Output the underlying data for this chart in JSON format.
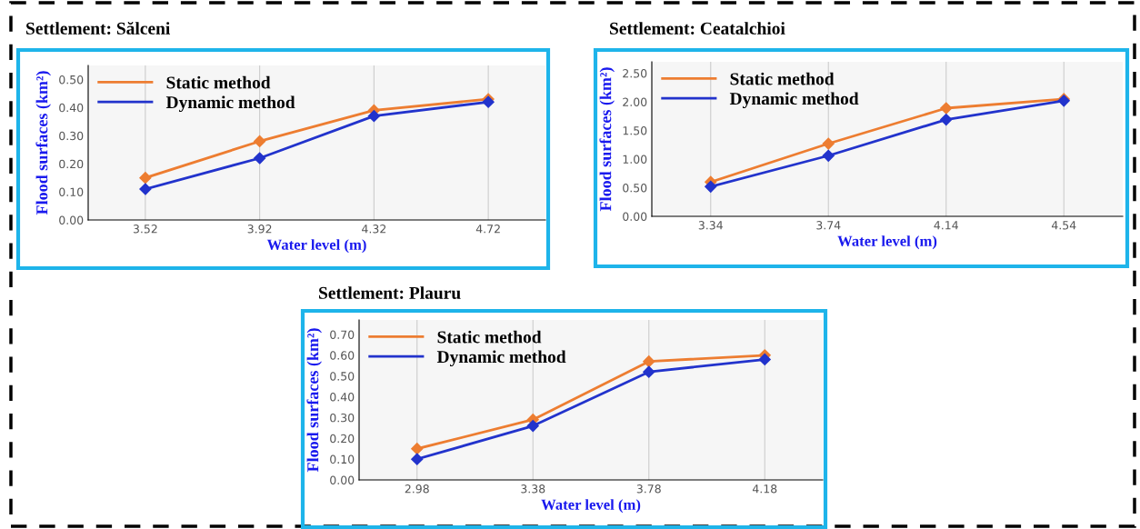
{
  "chart_data": [
    {
      "type": "line",
      "title": "Settlement: Sălceni",
      "xlabel": "Water level (m)",
      "ylabel": "Flood surfaces (km²)",
      "categories": [
        "3.52",
        "3.92",
        "4.32",
        "4.72"
      ],
      "ylim": [
        0,
        0.55
      ],
      "yticks": [
        {
          "value": 0,
          "label": "0.00"
        },
        {
          "value": 0.1,
          "label": "0.10"
        },
        {
          "value": 0.2,
          "label": "0.20"
        },
        {
          "value": 0.3,
          "label": "0.30"
        },
        {
          "value": 0.4,
          "label": "0.40"
        },
        {
          "value": 0.5,
          "label": "0.50"
        }
      ],
      "grid": "x",
      "legend": "top left",
      "marker": "diamond",
      "line_style": "solid",
      "series": [
        {
          "name": "Static method",
          "color": "#ed7d31",
          "values": [
            0.15,
            0.28,
            0.39,
            0.43
          ]
        },
        {
          "name": "Dynamic method",
          "color": "#2233cc",
          "values": [
            0.11,
            0.22,
            0.37,
            0.42
          ]
        }
      ]
    },
    {
      "type": "line",
      "title": "Settlement: Ceatalchioi",
      "xlabel": "Water level (m)",
      "ylabel": "Flood surfaces (km²)",
      "categories": [
        "3.34",
        "3.74",
        "4.14",
        "4.54"
      ],
      "ylim": [
        0,
        2.7
      ],
      "yticks": [
        {
          "value": 0,
          "label": "0.00"
        },
        {
          "value": 0.5,
          "label": "0.50"
        },
        {
          "value": 1,
          "label": "1.00"
        },
        {
          "value": 1.5,
          "label": "1.50"
        },
        {
          "value": 2,
          "label": "2.00"
        },
        {
          "value": 2.5,
          "label": "2.50"
        }
      ],
      "grid": "x",
      "legend": "top left",
      "marker": "diamond",
      "line_style": "solid",
      "series": [
        {
          "name": "Static method",
          "color": "#ed7d31",
          "values": [
            0.6,
            1.27,
            1.89,
            2.05
          ]
        },
        {
          "name": "Dynamic method",
          "color": "#2233cc",
          "values": [
            0.52,
            1.06,
            1.69,
            2.02
          ]
        }
      ]
    },
    {
      "type": "line",
      "title": "Settlement: Plauru",
      "xlabel": "Water level (m)",
      "ylabel": "Flood surfaces (km²)",
      "categories": [
        "2.98",
        "3.38",
        "3.78",
        "4.18"
      ],
      "ylim": [
        0,
        0.77
      ],
      "yticks": [
        {
          "value": 0,
          "label": "0.00"
        },
        {
          "value": 0.1,
          "label": "0.10"
        },
        {
          "value": 0.2,
          "label": "0.20"
        },
        {
          "value": 0.3,
          "label": "0.30"
        },
        {
          "value": 0.4,
          "label": "0.40"
        },
        {
          "value": 0.5,
          "label": "0.50"
        },
        {
          "value": 0.6,
          "label": "0.60"
        },
        {
          "value": 0.7,
          "label": "0.70"
        }
      ],
      "grid": "x",
      "legend": "top left",
      "marker": "diamond",
      "line_style": "solid",
      "series": [
        {
          "name": "Static method",
          "color": "#ed7d31",
          "values": [
            0.15,
            0.29,
            0.57,
            0.6
          ]
        },
        {
          "name": "Dynamic method",
          "color": "#2233cc",
          "values": [
            0.1,
            0.26,
            0.52,
            0.58
          ]
        }
      ]
    }
  ]
}
